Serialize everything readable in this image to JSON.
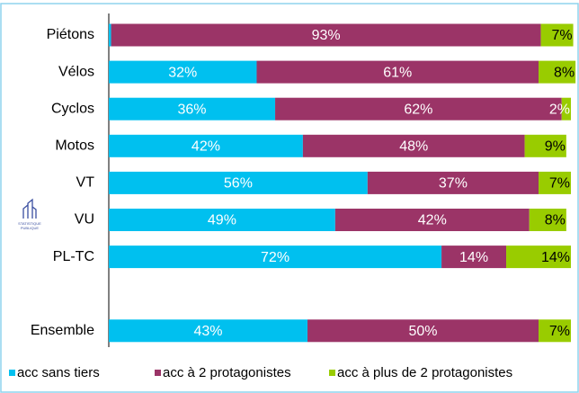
{
  "chart_data": {
    "type": "stacked-bar-horizontal",
    "categories": [
      "Piétons",
      "Vélos",
      "Cyclos",
      "Motos",
      "VT",
      "VU",
      "PL-TC",
      null,
      "Ensemble"
    ],
    "series": [
      {
        "name": "acc sans tiers",
        "color": "#00c0ef",
        "label_color": "#ffffff",
        "values": [
          0.5,
          32,
          36,
          42,
          56,
          49,
          72,
          null,
          43
        ],
        "value_labels": [
          null,
          "32%",
          "36%",
          "42%",
          "56%",
          "49%",
          "72%",
          null,
          "43%"
        ]
      },
      {
        "name": "acc à 2 protagonistes",
        "color": "#9b3467",
        "label_color": "#ffffff",
        "values": [
          93,
          61,
          62,
          48,
          37,
          42,
          14,
          null,
          50
        ],
        "value_labels": [
          "93%",
          "61%",
          "62%",
          "48%",
          "37%",
          "42%",
          "14%",
          null,
          "50%"
        ]
      },
      {
        "name": "acc à plus de 2 protagonistes",
        "color": "#99cc00",
        "label_color": "#000000",
        "values": [
          7,
          8,
          2,
          9,
          7,
          8,
          14,
          null,
          7
        ],
        "value_labels": [
          "7%",
          "8%",
          "2%",
          "9%",
          "7%",
          "8%",
          "14%",
          null,
          "7%"
        ]
      }
    ],
    "xlim": [
      0,
      100
    ],
    "legend": "bottom",
    "logo": [
      "STATISTIQUE",
      "PUBLIQUE"
    ]
  }
}
